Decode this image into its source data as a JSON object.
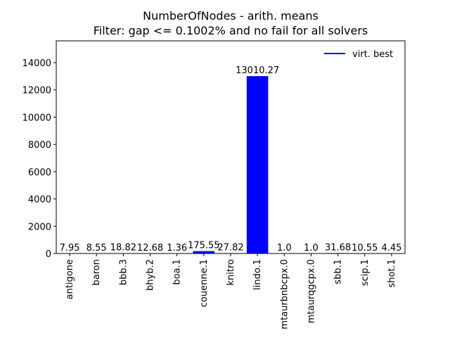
{
  "chart_data": {
    "type": "bar",
    "title": "NumberOfNodes - arith. means",
    "subtitle": "Filter: gap <= 0.1002% and no fail for all solvers",
    "xlabel": "",
    "ylabel": "",
    "categories": [
      "antigone",
      "baron",
      "bbb.3",
      "bhyb.2",
      "boa.1",
      "couenne.1",
      "knitro",
      "lindo.1",
      "mtaurbnbcpx.0",
      "mtaurqgcpx.0",
      "sbb.1",
      "scip.1",
      "shot.1"
    ],
    "values": [
      7.95,
      8.55,
      18.82,
      12.68,
      1.36,
      175.55,
      27.82,
      13010.27,
      1.0,
      1.0,
      31.68,
      10.55,
      4.45
    ],
    "value_labels": [
      "7.95",
      "8.55",
      "18.82",
      "12.68",
      "1.36",
      "175.55",
      "27.82",
      "13010.27",
      "1.0",
      "1.0",
      "31.68",
      "10.55",
      "4.45"
    ],
    "yticks": [
      0,
      2000,
      4000,
      6000,
      8000,
      10000,
      12000,
      14000
    ],
    "ylim": [
      0,
      15600
    ],
    "grid": false,
    "bar_color": "#0000ff",
    "series": [
      {
        "name": "virt. best",
        "color": "#0000ff"
      }
    ],
    "legend_position": "top-right"
  }
}
